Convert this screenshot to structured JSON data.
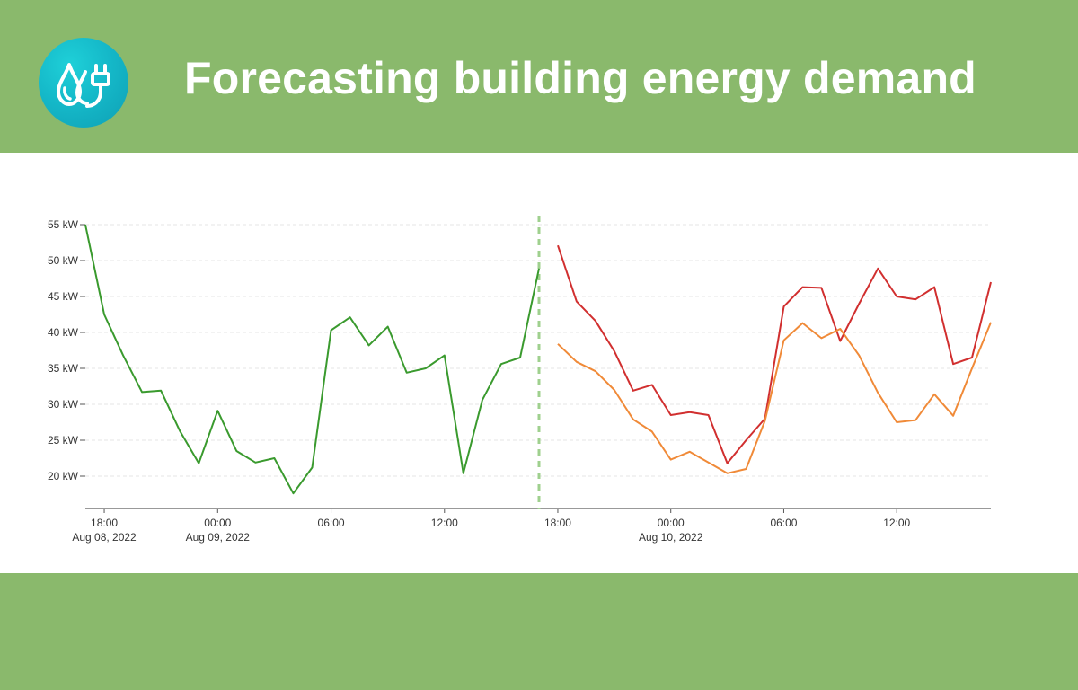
{
  "header": {
    "title": "Forecasting building energy demand",
    "logo_icon": "water-drop-plug-icon"
  },
  "colors": {
    "band": "#8ab96c",
    "history": "#3a9a2e",
    "forecast_red": "#d12f2f",
    "forecast_orange": "#f08a38",
    "divider": "#9fd08e"
  },
  "chart_data": {
    "type": "line",
    "title": "",
    "xlabel": "",
    "ylabel": "",
    "ylim": [
      15.5,
      56
    ],
    "y_ticks": [
      20,
      25,
      30,
      35,
      40,
      45,
      50,
      55
    ],
    "y_tick_labels": [
      "20 kW",
      "25 kW",
      "30 kW",
      "35 kW",
      "40 kW",
      "45 kW",
      "50 kW",
      "55 kW"
    ],
    "grid": "horizontal dashed",
    "legend": "none",
    "panels": [
      {
        "x_tick_labels": [
          [
            "18:00",
            "Aug 08, 2022"
          ],
          [
            "00:00",
            "Aug 09, 2022"
          ],
          [
            "06:00",
            ""
          ],
          [
            "12:00",
            ""
          ]
        ],
        "x_tick_hours": [
          18,
          24,
          30,
          36
        ],
        "hour_range": [
          17,
          41
        ],
        "series": [
          {
            "color": "#3a9a2e",
            "x_hours": [
              17,
              18,
              19,
              20,
              21,
              22,
              23,
              24,
              25,
              26,
              27,
              28,
              29,
              30,
              31,
              32,
              33,
              34,
              35,
              36,
              37,
              38,
              39,
              40,
              41
            ],
            "values": [
              55,
              42.5,
              36.8,
              31.7,
              31.9,
              26.3,
              21.8,
              29.1,
              23.5,
              21.9,
              22.5,
              17.6,
              21.2,
              40.3,
              42.1,
              38.2,
              40.8,
              34.4,
              35,
              36.8,
              20.4,
              30.6,
              35.6,
              36.5,
              48.9
            ]
          }
        ]
      },
      {
        "x_tick_labels": [
          [
            "18:00",
            ""
          ],
          [
            "00:00",
            "Aug 10, 2022"
          ],
          [
            "06:00",
            ""
          ],
          [
            "12:00",
            ""
          ]
        ],
        "x_tick_hours": [
          18,
          24,
          30,
          36
        ],
        "hour_range": [
          17,
          41
        ],
        "series": [
          {
            "color": "#d12f2f",
            "x_hours": [
              18,
              19,
              20,
              21,
              22,
              23,
              24,
              25,
              26,
              27,
              28,
              29,
              30,
              31,
              32,
              33,
              34,
              35,
              36,
              37,
              38,
              39,
              40,
              41
            ],
            "values": [
              52.1,
              44.3,
              41.6,
              37.4,
              31.9,
              32.7,
              28.5,
              28.9,
              28.5,
              21.8,
              25,
              28,
              43.6,
              46.3,
              46.2,
              38.8,
              44,
              48.9,
              45,
              44.6,
              46.3,
              35.6,
              36.5,
              47
            ]
          },
          {
            "color": "#f08a38",
            "x_hours": [
              18,
              19,
              20,
              21,
              22,
              23,
              24,
              25,
              26,
              27,
              28,
              29,
              30,
              31,
              32,
              33,
              34,
              35,
              36,
              37,
              38,
              39,
              40,
              41
            ],
            "values": [
              38.4,
              35.9,
              34.6,
              32,
              27.9,
              26.2,
              22.3,
              23.4,
              21.9,
              20.4,
              21,
              27.7,
              38.9,
              41.3,
              39.2,
              40.5,
              36.8,
              31.6,
              27.5,
              27.8,
              31.4,
              28.4,
              35,
              41.4
            ]
          }
        ]
      }
    ]
  }
}
